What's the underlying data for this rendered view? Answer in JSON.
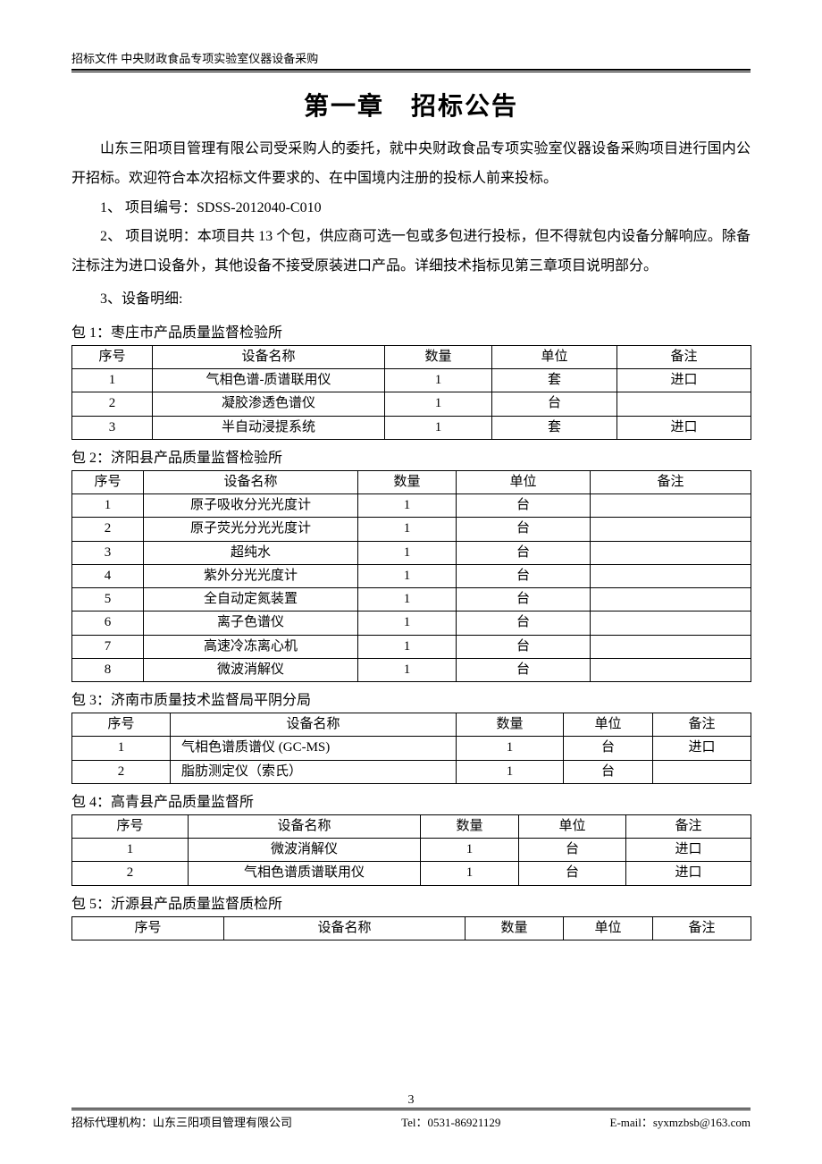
{
  "header": {
    "left": "招标文件",
    "right": "中央财政食品专项实验室仪器设备采购"
  },
  "title": "第一章　招标公告",
  "intro": "山东三阳项目管理有限公司受采购人的委托，就中央财政食品专项实验室仪器设备采购项目进行国内公开招标。欢迎符合本次招标文件要求的、在中国境内注册的投标人前来投标。",
  "items": {
    "i1": "1、 项目编号：SDSS-2012040-C010",
    "i2": "2、 项目说明：本项目共 13 个包，供应商可选一包或多包进行投标，但不得就包内设备分解响应。除备注标注为进口设备外，其他设备不接受原装进口产品。详细技术指标见第三章项目说明部分。",
    "i3": "3、设备明细:"
  },
  "thead": {
    "no": "序号",
    "name": "设备名称",
    "qty": "数量",
    "unit": "单位",
    "note": "备注"
  },
  "pkg1": {
    "label": "包 1：枣庄市产品质量监督检验所",
    "rows": [
      {
        "no": "1",
        "name": "气相色谱-质谱联用仪",
        "qty": "1",
        "unit": "套",
        "note": "进口"
      },
      {
        "no": "2",
        "name": "凝胶渗透色谱仪",
        "qty": "1",
        "unit": "台",
        "note": ""
      },
      {
        "no": "3",
        "name": "半自动浸提系统",
        "qty": "1",
        "unit": "套",
        "note": "进口"
      }
    ]
  },
  "pkg2": {
    "label": "包 2：济阳县产品质量监督检验所",
    "rows": [
      {
        "no": "1",
        "name": "原子吸收分光光度计",
        "qty": "1",
        "unit": "台",
        "note": ""
      },
      {
        "no": "2",
        "name": "原子荧光分光光度计",
        "qty": "1",
        "unit": "台",
        "note": ""
      },
      {
        "no": "3",
        "name": "超纯水",
        "qty": "1",
        "unit": "台",
        "note": ""
      },
      {
        "no": "4",
        "name": "紫外分光光度计",
        "qty": "1",
        "unit": "台",
        "note": ""
      },
      {
        "no": "5",
        "name": "全自动定氮装置",
        "qty": "1",
        "unit": "台",
        "note": ""
      },
      {
        "no": "6",
        "name": "离子色谱仪",
        "qty": "1",
        "unit": "台",
        "note": ""
      },
      {
        "no": "7",
        "name": "高速冷冻离心机",
        "qty": "1",
        "unit": "台",
        "note": ""
      },
      {
        "no": "8",
        "name": "微波消解仪",
        "qty": "1",
        "unit": "台",
        "note": ""
      }
    ]
  },
  "pkg3": {
    "label": "包 3：济南市质量技术监督局平阴分局",
    "rows": [
      {
        "no": "1",
        "name": "气相色谱质谱仪 (GC-MS)",
        "qty": "1",
        "unit": "台",
        "note": "进口"
      },
      {
        "no": "2",
        "name": "脂肪测定仪（索氏）",
        "qty": "1",
        "unit": "台",
        "note": ""
      }
    ]
  },
  "pkg4": {
    "label": "包 4：高青县产品质量监督所",
    "rows": [
      {
        "no": "1",
        "name": "微波消解仪",
        "qty": "1",
        "unit": "台",
        "note": "进口"
      },
      {
        "no": "2",
        "name": "气相色谱质谱联用仪",
        "qty": "1",
        "unit": "台",
        "note": "进口"
      }
    ]
  },
  "pkg5": {
    "label": "包 5：沂源县产品质量监督质检所"
  },
  "pageNumber": "3",
  "footer": {
    "left": "招标代理机构：山东三阳项目管理有限公司",
    "mid": "Tel：0531-86921129",
    "right": "E-mail：syxmzbsb@163.com"
  },
  "colwidths": {
    "pkg1": [
      "90",
      "260",
      "120",
      "140",
      "150"
    ],
    "pkg2": [
      "80",
      "240",
      "110",
      "150",
      "180"
    ],
    "pkg3": [
      "110",
      "320",
      "120",
      "100",
      "110"
    ],
    "pkg4": [
      "130",
      "260",
      "110",
      "120",
      "140"
    ],
    "pkg5": [
      "170",
      "270",
      "110",
      "100",
      "110"
    ]
  }
}
